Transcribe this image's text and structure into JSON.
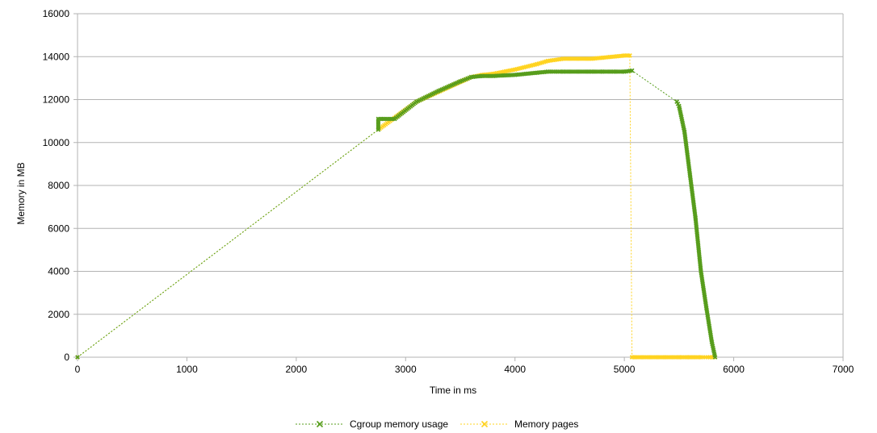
{
  "chart_data": {
    "type": "scatter",
    "title": "",
    "xlabel": "Time in ms",
    "ylabel": "Memory in MB",
    "xlim": [
      0,
      7000
    ],
    "ylim": [
      0,
      16000
    ],
    "xticks": [
      "0",
      "1000",
      "2000",
      "3000",
      "4000",
      "5000",
      "6000",
      "7000"
    ],
    "yticks": [
      "0",
      "2000",
      "4000",
      "6000",
      "8000",
      "10000",
      "12000",
      "14000",
      "16000"
    ],
    "grid": "horizontal",
    "legend_position": "bottom",
    "colors": {
      "cgroup": "#579d1c",
      "pages": "#ffd320",
      "grid": "#b3b3b3",
      "axis": "#b3b3b3"
    },
    "series": [
      {
        "name": "Cgroup memory usage",
        "key": "cgroup",
        "points": [
          [
            0,
            0
          ],
          [
            2750,
            10600
          ],
          [
            2750,
            11100
          ],
          [
            2800,
            11100
          ],
          [
            2900,
            11100
          ],
          [
            3100,
            11900
          ],
          [
            3300,
            12400
          ],
          [
            3500,
            12850
          ],
          [
            3600,
            13050
          ],
          [
            3700,
            13100
          ],
          [
            3800,
            13100
          ],
          [
            4000,
            13150
          ],
          [
            4200,
            13250
          ],
          [
            4300,
            13300
          ],
          [
            4440,
            13300
          ],
          [
            4700,
            13300
          ],
          [
            4800,
            13300
          ],
          [
            4900,
            13300
          ],
          [
            5000,
            13300
          ],
          [
            5070,
            13350
          ],
          [
            5480,
            11900
          ],
          [
            5500,
            11700
          ],
          [
            5550,
            10500
          ],
          [
            5600,
            8500
          ],
          [
            5650,
            6500
          ],
          [
            5700,
            4000
          ],
          [
            5750,
            2300
          ],
          [
            5800,
            700
          ],
          [
            5830,
            0
          ]
        ]
      },
      {
        "name": "Memory pages",
        "key": "pages",
        "points": [
          [
            0,
            0
          ],
          [
            2750,
            10600
          ],
          [
            3100,
            11900
          ],
          [
            3600,
            13050
          ],
          [
            3700,
            13150
          ],
          [
            3800,
            13200
          ],
          [
            4000,
            13400
          ],
          [
            4200,
            13650
          ],
          [
            4300,
            13800
          ],
          [
            4440,
            13900
          ],
          [
            4700,
            13900
          ],
          [
            4800,
            13950
          ],
          [
            5000,
            14050
          ],
          [
            5050,
            14050
          ],
          [
            5070,
            0
          ],
          [
            5500,
            0
          ],
          [
            5600,
            0
          ],
          [
            5700,
            0
          ],
          [
            5780,
            0
          ],
          [
            5830,
            0
          ]
        ]
      }
    ]
  }
}
